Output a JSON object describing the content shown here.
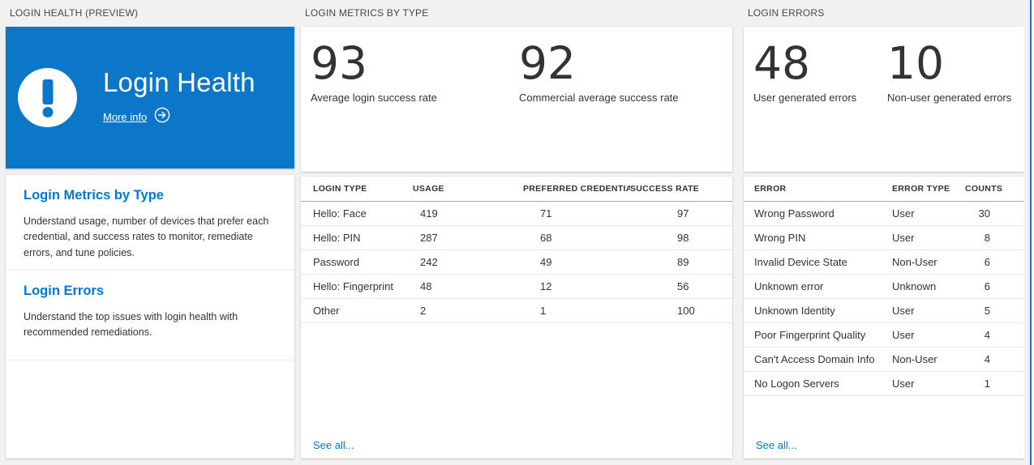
{
  "colors": {
    "tile_blue": "#0c77c8",
    "link_blue": "#0078d4",
    "edge_line_blue": "#2371b5",
    "background": "#f1f1f1"
  },
  "left_panel": {
    "header": "LOGIN HEALTH (PREVIEW)",
    "hero": {
      "title": "Login Health",
      "more_info_label": "More info"
    },
    "sections": [
      {
        "title": "Login Metrics by Type",
        "description": "Understand usage, number of devices that prefer each credential, and success rates to monitor, remediate errors, and tune policies."
      },
      {
        "title": "Login Errors",
        "description": "Understand the top issues with login health with recommended remediations."
      }
    ]
  },
  "metrics_panel": {
    "header": "LOGIN METRICS BY TYPE",
    "stats": [
      {
        "value": "93",
        "label": "Average login success rate"
      },
      {
        "value": "92",
        "label": "Commercial average success rate"
      }
    ],
    "table": {
      "columns": [
        "LOGIN TYPE",
        "USAGE",
        "PREFERRED CREDENTIAL",
        "SUCCESS RATE"
      ],
      "rows": [
        [
          "Hello: Face",
          "419",
          "71",
          "97"
        ],
        [
          "Hello: PIN",
          "287",
          "68",
          "98"
        ],
        [
          "Password",
          "242",
          "49",
          "89"
        ],
        [
          "Hello: Fingerprint",
          "48",
          "12",
          "56"
        ],
        [
          "Other",
          "2",
          "1",
          "100"
        ]
      ]
    },
    "see_all": "See all..."
  },
  "errors_panel": {
    "header": "LOGIN ERRORS",
    "stats": [
      {
        "value": "48",
        "label": "User generated errors"
      },
      {
        "value": "10",
        "label": "Non-user generated errors"
      }
    ],
    "table": {
      "columns": [
        "ERROR",
        "ERROR TYPE",
        "COUNTS"
      ],
      "rows": [
        [
          "Wrong Password",
          "User",
          "30"
        ],
        [
          "Wrong PIN",
          "User",
          "8"
        ],
        [
          "Invalid Device State",
          "Non-User",
          "6"
        ],
        [
          "Unknown error",
          "Unknown",
          "6"
        ],
        [
          "Unknown Identity",
          "User",
          "5"
        ],
        [
          "Poor Fingerprint Quality",
          "User",
          "4"
        ],
        [
          "Can't Access Domain Info",
          "Non-User",
          "4"
        ],
        [
          "No Logon Servers",
          "User",
          "1"
        ]
      ]
    },
    "see_all": "See all..."
  }
}
